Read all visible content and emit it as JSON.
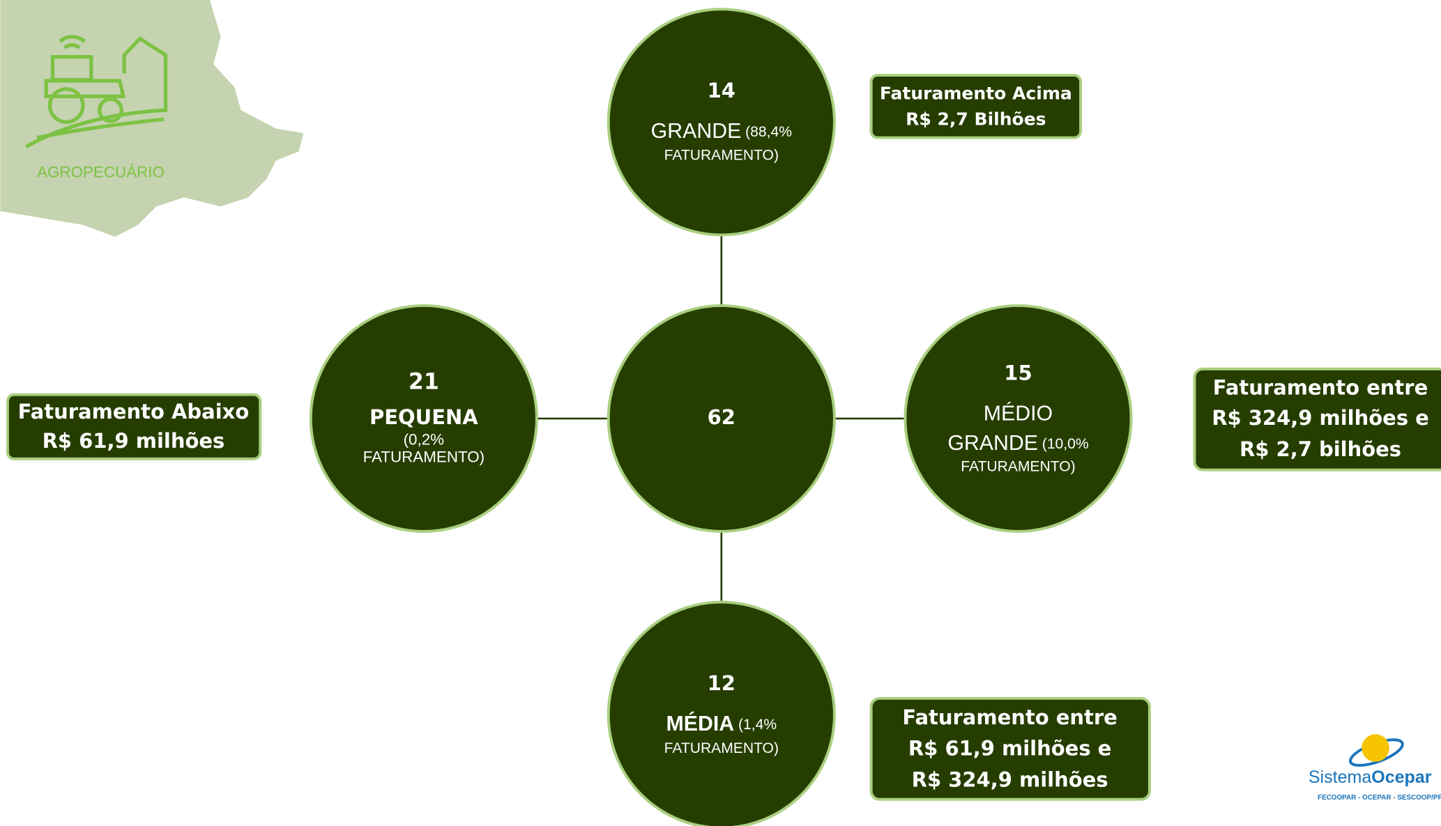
{
  "header": {
    "sector": "AGROPECUÁRIO"
  },
  "center": {
    "count": "62"
  },
  "nodes": [
    {
      "count": "14",
      "name_lines": [
        "GRANDE"
      ],
      "share_lines": [
        "(88,4%",
        "FATURAMENTO)"
      ]
    },
    {
      "count": "21",
      "name_lines": [
        "PEQUENA"
      ],
      "share_lines": [
        "(0,2%",
        "FATURAMENTO)"
      ]
    },
    {
      "count": "15",
      "name_lines": [
        "MÉDIO",
        "GRANDE"
      ],
      "share_lines": [
        "(10,0%",
        "FATURAMENTO)"
      ]
    },
    {
      "count": "12",
      "name_lines": [
        "MÉDIA"
      ],
      "share_lines": [
        "(1,4%",
        "FATURAMENTO)"
      ]
    }
  ],
  "boxes": [
    {
      "lines": [
        "Faturamento Acima",
        "R$ 2,7 Bilhões"
      ]
    },
    {
      "lines": [
        "Faturamento Abaixo",
        "R$ 61,9 milhões"
      ]
    },
    {
      "lines": [
        "Faturamento entre",
        "R$ 324,9 milhões e",
        "R$ 2,7 bilhões"
      ]
    },
    {
      "lines": [
        "Faturamento entre",
        "R$ 61,9 milhões e",
        "R$ 324,9 milhões"
      ]
    }
  ],
  "logo": {
    "brand_a": "Sistema",
    "brand_b": "Ocepar",
    "tagline": "FECOOPAR - OCEPAR - SESCOOP/PR"
  }
}
